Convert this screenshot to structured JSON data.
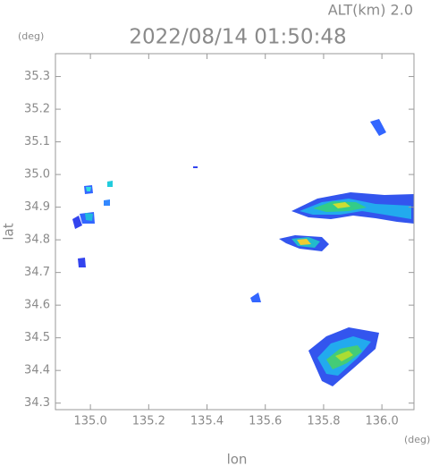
{
  "chart_data": {
    "type": "map",
    "title": "2022/08/14 01:50:48",
    "annotation": "ALT(km) 2.0",
    "y_unit": "(deg)",
    "x_unit": "(deg)",
    "x_label": "lon",
    "y_label": "lat",
    "xlim": [
      134.88,
      136.11
    ],
    "ylim": [
      34.28,
      35.37
    ],
    "xticks": [
      {
        "value": 135,
        "label": "135.0"
      },
      135.2,
      135.4,
      135.6,
      135.8,
      {
        "value": 136,
        "label": "136.0"
      }
    ],
    "yticks": [
      34.3,
      34.4,
      34.5,
      34.6,
      34.7,
      34.8,
      34.9,
      {
        "value": 35,
        "label": "35.0"
      },
      35.1,
      35.2,
      35.3
    ]
  }
}
